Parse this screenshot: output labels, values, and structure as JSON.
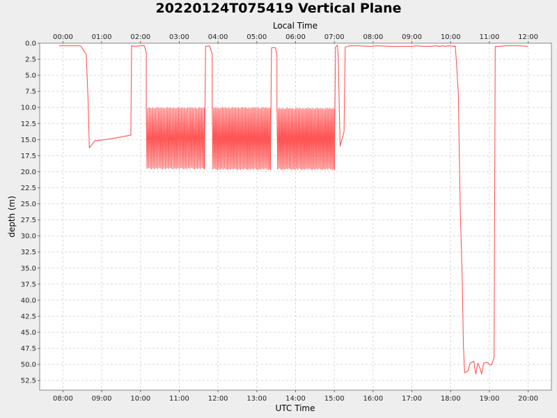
{
  "chart_data": {
    "type": "line",
    "title": "20220124T075419 Vertical Plane",
    "xlabel": "UTC Time",
    "x2label": "Local Time",
    "ylabel": "depth (m)",
    "xlim": [
      7.4,
      20.6
    ],
    "ylim": [
      0,
      54
    ],
    "y_inverted": true,
    "grid": true,
    "x_ticks": [
      "08:00",
      "09:00",
      "10:00",
      "11:00",
      "12:00",
      "13:00",
      "14:00",
      "15:00",
      "16:00",
      "17:00",
      "18:00",
      "19:00",
      "20:00"
    ],
    "x2_ticks": [
      "00:00",
      "01:00",
      "02:00",
      "03:00",
      "04:00",
      "05:00",
      "06:00",
      "07:00",
      "08:00",
      "09:00",
      "10:00",
      "11:00",
      "12:00"
    ],
    "y_ticks": [
      "0.0",
      "2.5",
      "5.0",
      "7.5",
      "10.0",
      "12.5",
      "15.0",
      "17.5",
      "20.0",
      "22.5",
      "25.0",
      "27.5",
      "30.0",
      "32.5",
      "35.0",
      "37.5",
      "40.0",
      "42.5",
      "45.0",
      "47.5",
      "50.0",
      "52.5"
    ],
    "series": [
      {
        "color": "#ff5555",
        "segments": [
          {
            "kind": "points",
            "points": [
              [
                7.9,
                0.4
              ],
              [
                8.25,
                0.4
              ],
              [
                8.45,
                0.4
              ],
              [
                8.6,
                1.7
              ],
              [
                8.65,
                9
              ],
              [
                8.68,
                16.3
              ],
              [
                8.82,
                15.2
              ],
              [
                9.1,
                15.0
              ],
              [
                9.4,
                14.7
              ],
              [
                9.75,
                14.3
              ],
              [
                9.77,
                0.4
              ],
              [
                9.85,
                0.5
              ],
              [
                10.0,
                0.4
              ],
              [
                10.1,
                0.4
              ],
              [
                10.15,
                1.5
              ]
            ]
          },
          {
            "kind": "osc",
            "start": 10.15,
            "end": 11.65,
            "lo": 10.0,
            "hi": 19.6,
            "n": 38
          },
          {
            "kind": "points",
            "points": [
              [
                11.65,
                19.6
              ],
              [
                11.68,
                0.5
              ],
              [
                11.78,
                0.4
              ],
              [
                11.85,
                1.7
              ],
              [
                11.85,
                10.0
              ]
            ]
          },
          {
            "kind": "osc",
            "start": 11.85,
            "end": 13.35,
            "lo": 10.0,
            "hi": 19.7,
            "n": 40
          },
          {
            "kind": "points",
            "points": [
              [
                13.35,
                19.7
              ],
              [
                13.38,
                0.7
              ],
              [
                13.48,
                0.7
              ],
              [
                13.52,
                1.8
              ],
              [
                13.52,
                10.0
              ]
            ]
          },
          {
            "kind": "osc",
            "start": 13.52,
            "end": 15.0,
            "lo": 10.1,
            "hi": 19.7,
            "n": 40
          },
          {
            "kind": "points",
            "points": [
              [
                15.0,
                19.7
              ],
              [
                15.03,
                0.6
              ],
              [
                15.08,
                0.3
              ],
              [
                15.1,
                2.0
              ],
              [
                15.15,
                16.0
              ],
              [
                15.25,
                13.8
              ],
              [
                15.28,
                0.6
              ],
              [
                15.4,
                0.4
              ],
              [
                15.6,
                0.4
              ],
              [
                15.8,
                0.45
              ],
              [
                15.95,
                0.5
              ],
              [
                16.1,
                0.4
              ],
              [
                16.3,
                0.45
              ],
              [
                16.5,
                0.5
              ],
              [
                16.7,
                0.5
              ],
              [
                17.0,
                0.5
              ],
              [
                17.1,
                0.4
              ],
              [
                17.3,
                0.5
              ],
              [
                17.5,
                0.5
              ],
              [
                17.6,
                0.4
              ],
              [
                17.7,
                0.5
              ],
              [
                17.8,
                0.4
              ],
              [
                17.85,
                0.5
              ],
              [
                17.95,
                0.4
              ],
              [
                18.1,
                0.5
              ],
              [
                18.12,
                0.4
              ],
              [
                18.15,
                3.0
              ],
              [
                18.2,
                8.0
              ],
              [
                18.22,
                16.0
              ],
              [
                18.25,
                26.0
              ],
              [
                18.3,
                37.0
              ],
              [
                18.33,
                47.0
              ],
              [
                18.36,
                51.3
              ],
              [
                18.45,
                51.0
              ],
              [
                18.5,
                49.8
              ],
              [
                18.6,
                49.5
              ],
              [
                18.62,
                50.5
              ],
              [
                18.65,
                51.5
              ],
              [
                18.7,
                49.8
              ],
              [
                18.75,
                50.5
              ],
              [
                18.8,
                51.5
              ],
              [
                18.85,
                49.8
              ],
              [
                18.95,
                49.7
              ],
              [
                19.0,
                50.0
              ],
              [
                19.05,
                50.1
              ],
              [
                19.1,
                49.3
              ],
              [
                19.12,
                49.0
              ],
              [
                19.15,
                0.5
              ],
              [
                19.25,
                0.5
              ],
              [
                19.4,
                0.4
              ],
              [
                19.6,
                0.4
              ],
              [
                19.8,
                0.4
              ],
              [
                20.0,
                0.5
              ]
            ]
          }
        ]
      }
    ]
  }
}
